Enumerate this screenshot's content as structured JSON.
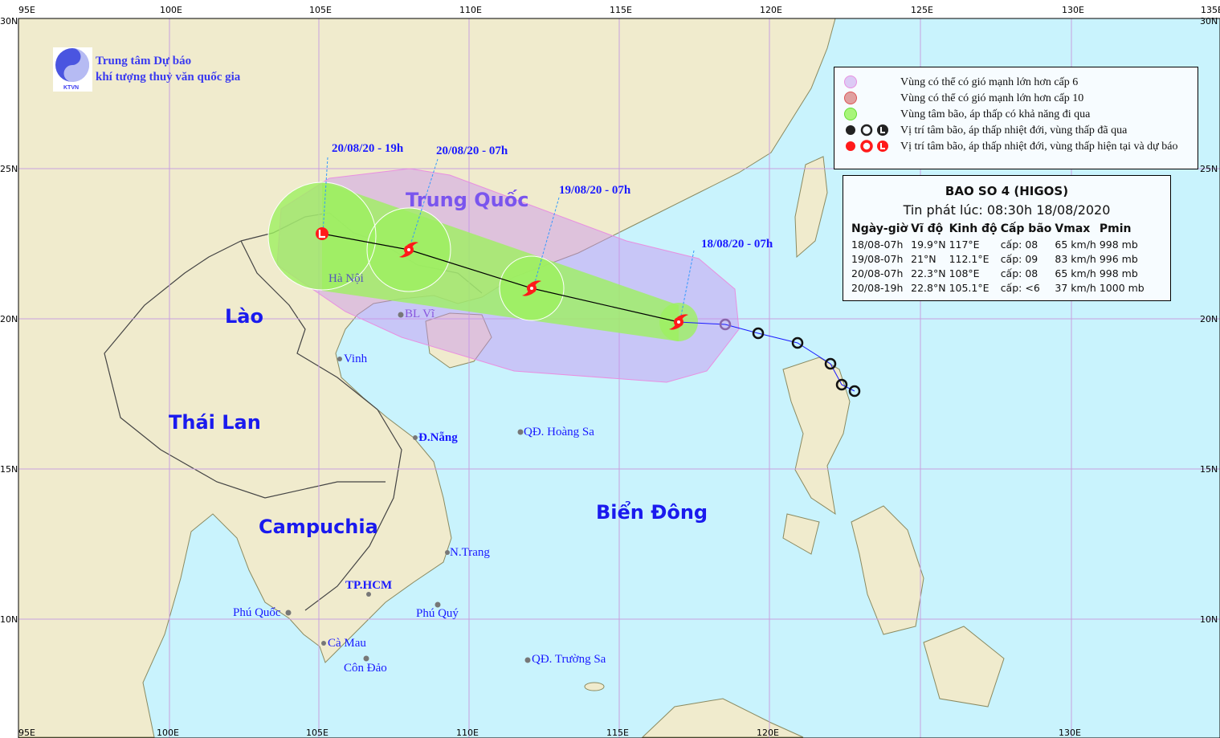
{
  "header": {
    "org_line1": "Trung tâm Dự báo",
    "org_line2": "khí tượng thuỷ văn quốc gia",
    "logo_text": "KTVN"
  },
  "axes": {
    "lon_labels": [
      "95E",
      "100E",
      "105E",
      "110E",
      "115E",
      "120E",
      "125E",
      "130E",
      "135E"
    ],
    "lat_labels": [
      "30N",
      "25N",
      "20N",
      "15N",
      "10N"
    ]
  },
  "countries": {
    "china": "Trung Quốc",
    "laos": "Lào",
    "thailand": "Thái Lan",
    "cambodia": "Campuchia",
    "sea": "Biển Đông"
  },
  "places": {
    "hanoi": "Hà Nội",
    "blvi": "BL Vĩ",
    "vinh": "Vinh",
    "danang": "Đ.Nẵng",
    "hoangsa": "QĐ. Hoàng Sa",
    "nhatrang": "N.Trang",
    "hcm": "TP.HCM",
    "phuquoc": "Phú Quốc",
    "phuquy": "Phú Quý",
    "camau": "Cà Mau",
    "condao": "Côn Đảo",
    "truongsa": "QĐ. Trường Sa"
  },
  "track_labels": [
    "20/08/20 - 19h",
    "20/08/20 - 07h",
    "19/08/20 - 07h",
    "18/08/20 - 07h"
  ],
  "legend": {
    "items": [
      {
        "label": "Vùng có thể có gió mạnh lớn hơn cấp 6",
        "color": "#dccaf5"
      },
      {
        "label": "Vùng có thể có gió mạnh lớn hơn cấp 10",
        "color": "#e0a0a0"
      },
      {
        "label": "Vùng tâm bão, áp thấp có khả năng đi qua",
        "color": "#a8f57a"
      },
      {
        "label": "Vị trí tâm bão, áp thấp nhiệt đới, vùng thấp đã qua",
        "color": "#222222"
      },
      {
        "label": "Vị trí tâm bão, áp thấp nhiệt đới, vùng thấp hiện tại và dự báo",
        "color": "#ff1a1a"
      }
    ]
  },
  "info": {
    "title": "BAO SO 4 (HIGOS)",
    "issued": "Tin phát lúc: 08:30h 18/08/2020",
    "columns": [
      "Ngày-giờ",
      "Vĩ độ",
      "Kinh độ",
      "Cấp bão",
      "Vmax",
      "Pmin"
    ],
    "rows": [
      [
        "18/08-07h",
        "19.9°N",
        "117°E",
        "cấp: 08",
        "65 km/h",
        "998 mb"
      ],
      [
        "19/08-07h",
        "21°N",
        "112.1°E",
        "cấp: 09",
        "83 km/h",
        "996 mb"
      ],
      [
        "20/08-07h",
        "22.3°N",
        "108°E",
        "cấp: 08",
        "65 km/h",
        "998 mb"
      ],
      [
        "20/08-19h",
        "22.8°N",
        "105.1°E",
        "cấp: <6",
        "37 km/h",
        "1000 mb"
      ]
    ]
  },
  "colors": {
    "land": "#f0ebcd",
    "sea": "#c9f3fd",
    "grid": "#c8a0e0",
    "track": "#ff1a1a",
    "past": "#222222"
  }
}
